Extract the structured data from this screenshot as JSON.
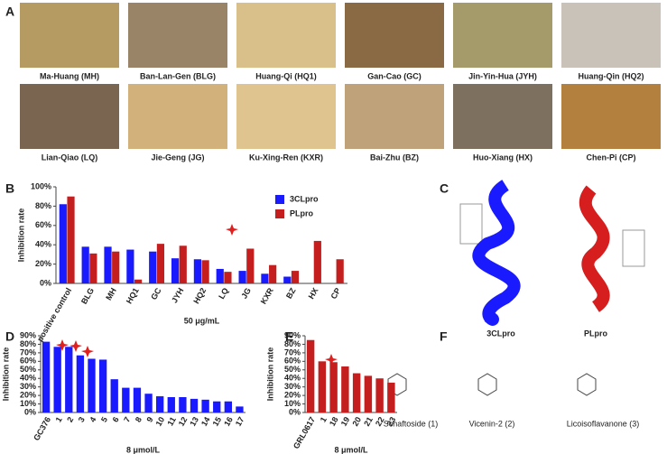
{
  "panel_labels": [
    "A",
    "B",
    "C",
    "D",
    "E",
    "F"
  ],
  "herbs": [
    "Ma-Huang (MH)",
    "Ban-Lan-Gen (BLG)",
    "Huang-Qi (HQ1)",
    "Gan-Cao (GC)",
    "Jin-Yin-Hua (JYH)",
    "Huang-Qin (HQ2)",
    "Lian-Qiao (LQ)",
    "Jie-Geng (JG)",
    "Ku-Xing-Ren (KXR)",
    "Bai-Zhu (BZ)",
    "Huo-Xiang (HX)",
    "Chen-Pi (CP)"
  ],
  "proteins": [
    "3CLpro",
    "PLpro"
  ],
  "compounds": [
    "Schaftoside (1)",
    "Vicenin-2 (2)",
    "Licoisoflavanone (3)"
  ],
  "chart_data": [
    {
      "type": "bar",
      "ylabel": "Inhibition rate",
      "xlabel": "50 μg/mL",
      "categories": [
        "positive control",
        "BLG",
        "MH",
        "HQ1",
        "GC",
        "JYH",
        "HQ2",
        "LQ",
        "JG",
        "KXR",
        "BZ",
        "HX",
        "CP"
      ],
      "series": [
        {
          "name": "3CLpro",
          "color": "#1a1aff",
          "values": [
            82,
            38,
            38,
            35,
            33,
            26,
            25,
            15,
            13,
            10,
            7,
            null,
            null
          ]
        },
        {
          "name": "PLpro",
          "color": "#c41e1e",
          "values": [
            90,
            31,
            33,
            4,
            41,
            39,
            24,
            12,
            36,
            19,
            13,
            44,
            25
          ]
        }
      ],
      "ylim": [
        0,
        100
      ],
      "yticks": [
        {
          "value": 0,
          "label": "0%"
        },
        {
          "value": 20,
          "label": "20%"
        },
        {
          "value": 40,
          "label": "40%"
        },
        {
          "value": 60,
          "label": "60%"
        },
        {
          "value": 80,
          "label": "80%"
        },
        {
          "value": 100,
          "label": "100%"
        }
      ],
      "legend": "upper-right"
    },
    {
      "type": "bar",
      "ylabel": "Inhibition rate",
      "xlabel": "8 μmol/L",
      "categories": [
        "GC376",
        "1",
        "2",
        "3",
        "4",
        "5",
        "6",
        "7",
        "8",
        "9",
        "10",
        "11",
        "12",
        "13",
        "14",
        "15",
        "16",
        "17"
      ],
      "series": [
        {
          "color": "#1a1aff",
          "values": [
            83,
            77,
            77,
            67,
            63,
            62,
            39,
            29,
            29,
            22,
            19,
            18,
            18,
            16,
            15,
            13,
            13,
            7
          ]
        }
      ],
      "ylim": [
        0,
        90
      ],
      "yticks": [
        {
          "value": 0,
          "label": "0%"
        },
        {
          "value": 10,
          "label": "10%"
        },
        {
          "value": 20,
          "label": "20%"
        },
        {
          "value": 30,
          "label": "30%"
        },
        {
          "value": 40,
          "label": "40%"
        },
        {
          "value": 50,
          "label": "50%"
        },
        {
          "value": 60,
          "label": "60%"
        },
        {
          "value": 70,
          "label": "70%"
        },
        {
          "value": 80,
          "label": "80%"
        },
        {
          "value": 90,
          "label": "90%"
        }
      ]
    },
    {
      "type": "bar",
      "ylabel": "Inhibition rate",
      "xlabel": "8 μmol/L",
      "categories": [
        "GRL0617",
        "1",
        "18",
        "19",
        "20",
        "21",
        "22",
        "23"
      ],
      "series": [
        {
          "color": "#c41e1e",
          "values": [
            85,
            60,
            59,
            54,
            46,
            43,
            40,
            35
          ]
        }
      ],
      "ylim": [
        0,
        90
      ],
      "yticks": [
        {
          "value": 0,
          "label": "0%"
        },
        {
          "value": 10,
          "label": "10%"
        },
        {
          "value": 20,
          "label": "20%"
        },
        {
          "value": 30,
          "label": "30%"
        },
        {
          "value": 40,
          "label": "40%"
        },
        {
          "value": 50,
          "label": "50%"
        },
        {
          "value": 60,
          "label": "60%"
        },
        {
          "value": 70,
          "label": "70%"
        },
        {
          "value": 80,
          "label": "80%"
        },
        {
          "value": 90,
          "label": "90%"
        }
      ]
    }
  ]
}
